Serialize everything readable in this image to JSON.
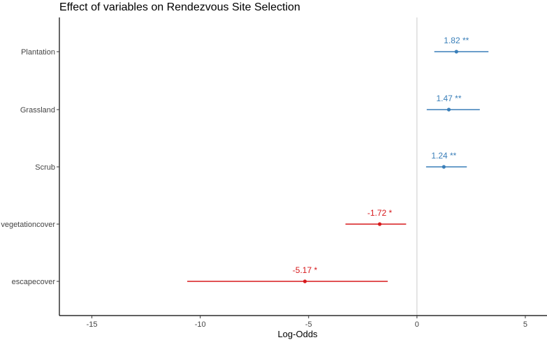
{
  "chart_data": {
    "type": "scatter",
    "title": "Effect of variables on Rendezvous Site Selection",
    "xlabel": "Log-Odds",
    "ylabel": "",
    "xlim": [
      -16.5,
      6
    ],
    "x_ticks": [
      -15,
      -10,
      -5,
      0,
      5
    ],
    "x_tick_labels": [
      "-15",
      "-10",
      "-5",
      "0",
      "5"
    ],
    "reference_line_x": 0,
    "grid": false,
    "legend": "none",
    "categories": [
      "Plantation",
      "Grassland",
      "Scrub",
      "vegetationcover",
      "escapecover"
    ],
    "estimates": [
      1.82,
      1.47,
      1.24,
      -1.72,
      -5.17
    ],
    "ci_low": [
      0.8,
      0.45,
      0.42,
      -3.3,
      -10.6
    ],
    "ci_high": [
      3.3,
      2.9,
      2.3,
      -0.5,
      -1.35
    ],
    "labels": [
      "1.82 **",
      "1.47 **",
      "1.24 **",
      "-1.72 *",
      "-5.17 *"
    ],
    "colors": {
      "positive": "#3a7fb9",
      "negative": "#d7191c",
      "reference": "#cccccc",
      "axis": "#000000"
    }
  }
}
